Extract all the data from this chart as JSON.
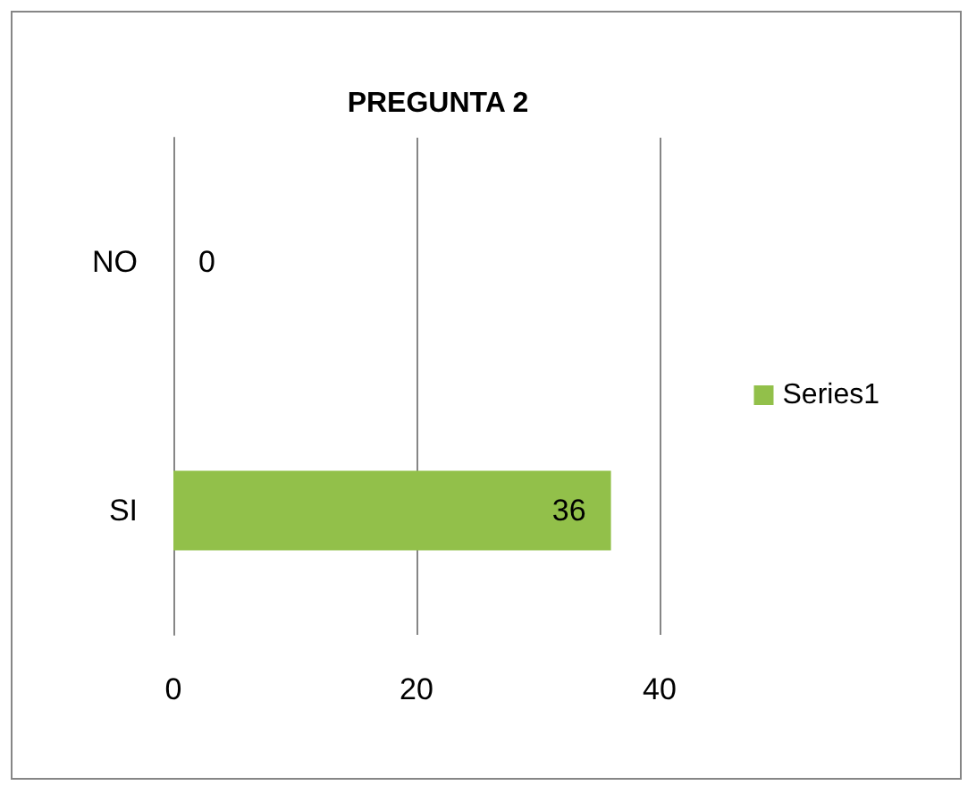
{
  "chart_data": {
    "type": "bar",
    "title": "PREGUNTA 2",
    "orientation": "horizontal",
    "categories": [
      "NO",
      "SI"
    ],
    "series": [
      {
        "name": "Series1",
        "color": "#92c04a",
        "values": [
          0,
          36
        ]
      }
    ],
    "xlim": [
      0,
      40
    ],
    "xticks": [
      0,
      20,
      40
    ],
    "grid": "x",
    "legend": "right",
    "data_labels": true
  }
}
